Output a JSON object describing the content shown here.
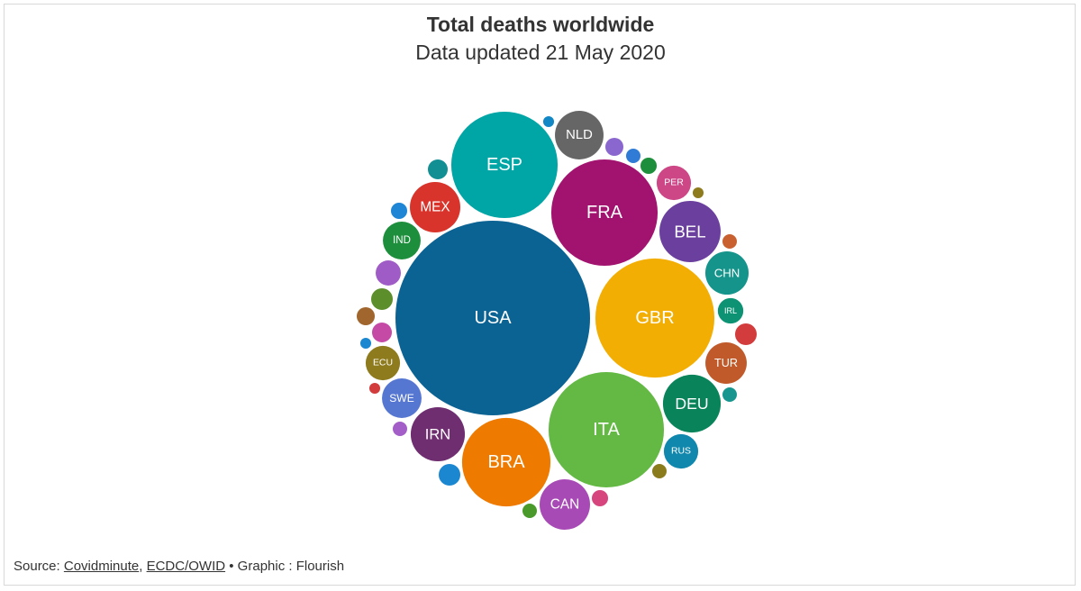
{
  "chart_data": {
    "type": "packed-bubble",
    "title": "Total deaths worldwide",
    "subtitle": "Data updated 21 May 2020",
    "categories": [
      "USA",
      "GBR",
      "ITA",
      "FRA",
      "ESP",
      "BRA",
      "BEL",
      "DEU",
      "IRN",
      "CAN",
      "NLD",
      "MEX",
      "CHN",
      "TUR",
      "SWE",
      "IND",
      "PER",
      "ECU",
      "RUS",
      "IRL",
      null,
      null,
      null,
      null,
      null,
      null,
      null,
      null,
      null,
      null,
      null,
      null,
      null,
      null,
      null,
      null,
      null,
      null,
      null,
      null,
      null
    ],
    "values": [
      93000,
      34800,
      32700,
      27800,
      27800,
      19200,
      9200,
      8200,
      7200,
      6250,
      5800,
      6250,
      4600,
      4200,
      3850,
      3500,
      2900,
      2900,
      2900,
      1600,
      800,
      510,
      650,
      965,
      650,
      1560,
      1150,
      800,
      965,
      1150,
      510,
      1150,
      510,
      650,
      510,
      510,
      290,
      290,
      510,
      290,
      290
    ],
    "colors": [
      "#0b6394",
      "#f3ae04",
      "#63b944",
      "#a2136f",
      "#00a5a5",
      "#ee7b00",
      "#6a3f9e",
      "#09845a",
      "#6f2e6f",
      "#a84ab5",
      "#666666",
      "#d9342b",
      "#15948b",
      "#c05a2a",
      "#5677d1",
      "#1c8e3c",
      "#cd4786",
      "#8e7b1d",
      "#1087ad",
      "#0d9374",
      "#8a67cf",
      "#2f7bd6",
      "#1d8e3c",
      "#128f93",
      "#1f86d6",
      "#a05cc6",
      "#5d8e2c",
      "#a0662d",
      "#c44aa6",
      "#d33c3c",
      "#16968e",
      "#1a87d0",
      "#4a9a2b",
      "#d6457e",
      "#8a7b1d",
      "#c86030",
      "#8e7b1d",
      "#1287c5",
      "#a35ec8",
      "#d33c3c",
      "#1a87d0"
    ],
    "source": {
      "label": "Source:",
      "links": [
        "Covidminute",
        "ECDC/OWID"
      ],
      "separator": ",",
      "credit": "• Graphic : Flourish"
    }
  }
}
